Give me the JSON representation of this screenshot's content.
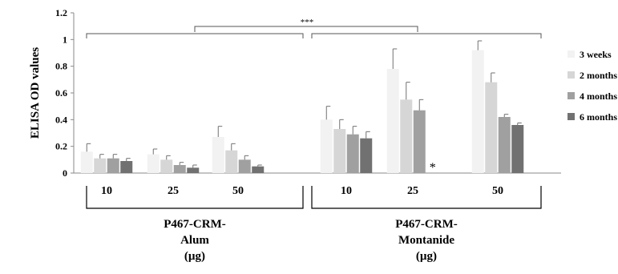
{
  "chart_data": {
    "type": "bar",
    "ylabel": "ELISA OD values",
    "ylim": [
      0,
      1.2
    ],
    "yticks": [
      "0",
      "0.2",
      "0.4",
      "0.6",
      "0.8",
      "1",
      "1.2"
    ],
    "categories": [
      "10",
      "25",
      "50",
      "10",
      "25",
      "50"
    ],
    "groups": [
      {
        "label_lines": [
          "P467-CRM-",
          "Alum",
          "(µg)"
        ]
      },
      {
        "label_lines": [
          "P467-CRM-",
          "Montanide",
          "(µg)"
        ]
      }
    ],
    "legend_position": "right",
    "series": [
      {
        "name": "3 weeks",
        "color": "#f2f2f2",
        "values": [
          0.16,
          0.14,
          0.27,
          0.4,
          0.78,
          0.92
        ],
        "errors": [
          0.06,
          0.04,
          0.08,
          0.1,
          0.15,
          0.07
        ]
      },
      {
        "name": "2 months",
        "color": "#d6d6d6",
        "values": [
          0.11,
          0.1,
          0.17,
          0.33,
          0.55,
          0.68
        ],
        "errors": [
          0.03,
          0.03,
          0.05,
          0.07,
          0.13,
          0.07
        ]
      },
      {
        "name": "4 months",
        "color": "#a0a0a0",
        "values": [
          0.11,
          0.06,
          0.1,
          0.29,
          0.47,
          0.42
        ],
        "errors": [
          0.03,
          0.02,
          0.03,
          0.06,
          0.08,
          0.02
        ]
      },
      {
        "name": "6 months",
        "color": "#717171",
        "values": [
          0.09,
          0.04,
          0.05,
          0.26,
          null,
          0.36
        ],
        "errors": [
          0.02,
          0.02,
          0.01,
          0.05,
          null,
          0.015
        ]
      }
    ],
    "annotations": {
      "significance_label": "***",
      "missing_marker": "*"
    }
  }
}
